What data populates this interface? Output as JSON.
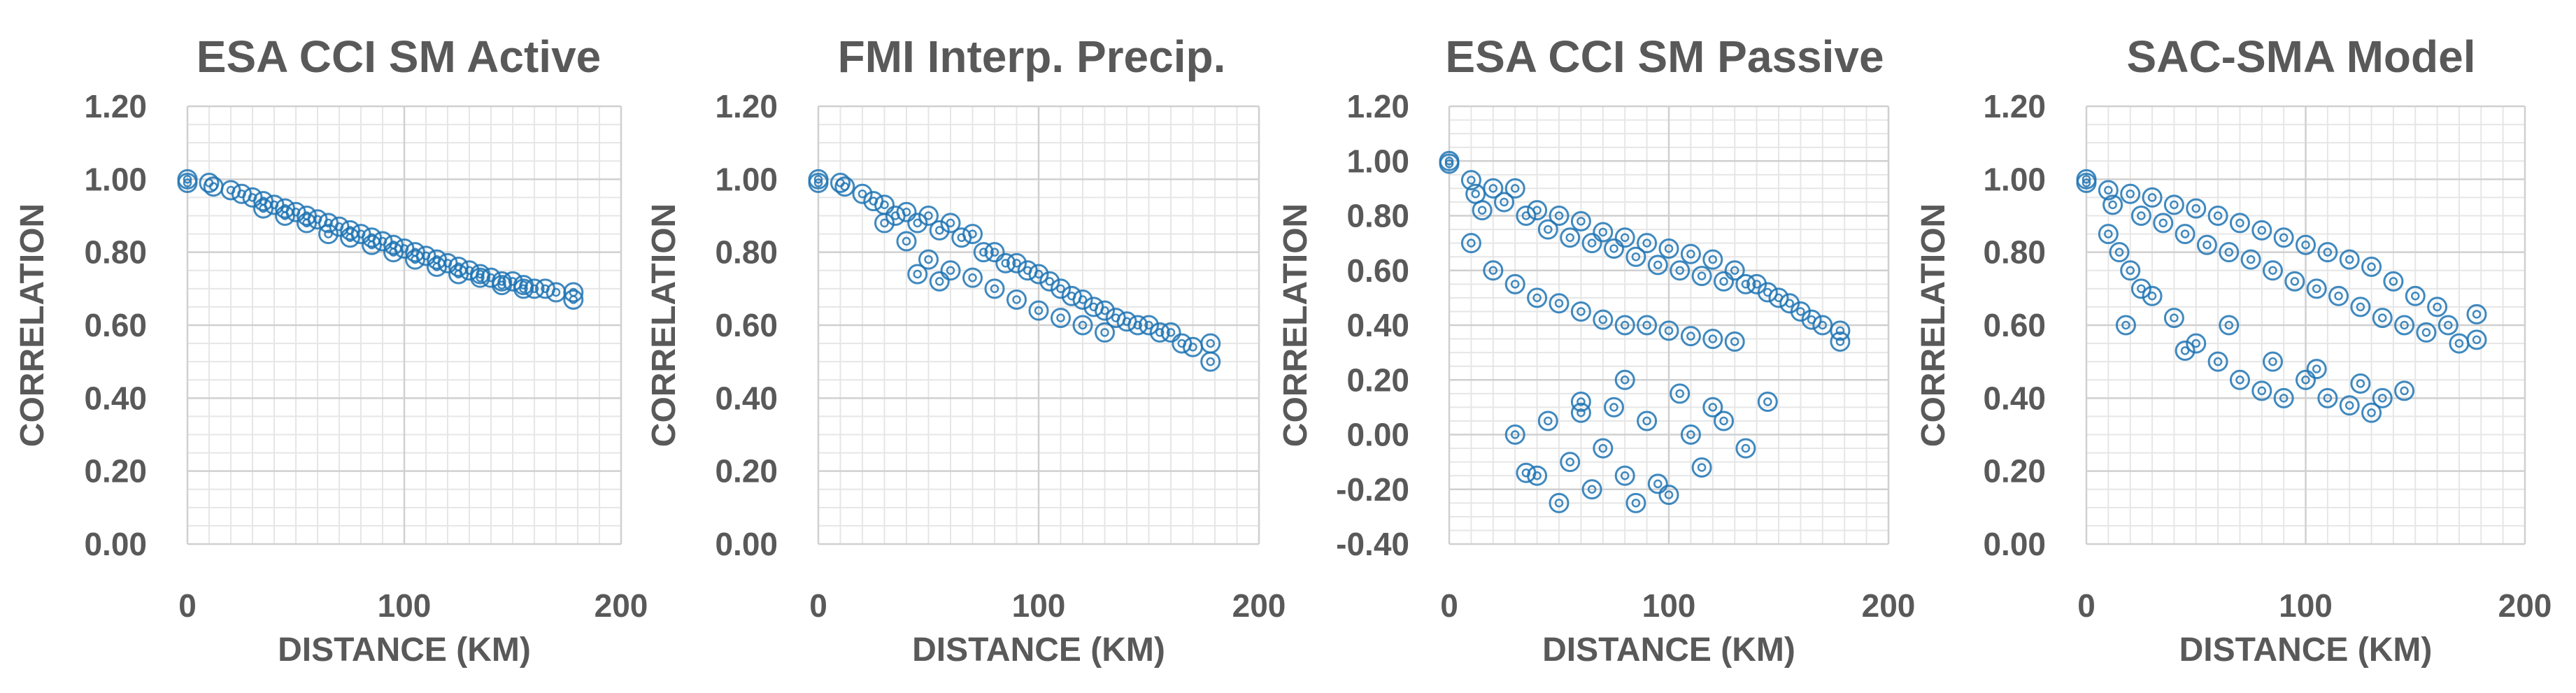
{
  "chart_data": [
    {
      "type": "scatter",
      "title": "ESA CCI SM Active",
      "xlabel": "DISTANCE (KM)",
      "ylabel": "CORRELATION",
      "xlim": [
        0,
        200
      ],
      "ylim": [
        0,
        1.2
      ],
      "xticks": [
        0,
        100,
        200
      ],
      "xtick_labels": [
        "0",
        "100",
        "200"
      ],
      "yticks": [
        0,
        0.2,
        0.4,
        0.6,
        0.8,
        1.0,
        1.2
      ],
      "ytick_labels": [
        "0.00",
        "0.20",
        "0.40",
        "0.60",
        "0.80",
        "1.00",
        "1.20"
      ],
      "grid": true,
      "marker": "open-circle",
      "color": "#1f74b4",
      "series": [
        {
          "name": "ESA CCI SM Active",
          "x": [
            0,
            0,
            10,
            12,
            20,
            25,
            30,
            35,
            40,
            45,
            50,
            55,
            60,
            65,
            70,
            75,
            80,
            85,
            90,
            95,
            100,
            105,
            110,
            115,
            120,
            125,
            130,
            135,
            140,
            145,
            150,
            155,
            160,
            165,
            170,
            178,
            178,
            35,
            45,
            55,
            65,
            75,
            85,
            95,
            105,
            115,
            125,
            135,
            145,
            155
          ],
          "y": [
            1.0,
            0.99,
            0.99,
            0.98,
            0.97,
            0.96,
            0.95,
            0.94,
            0.93,
            0.92,
            0.91,
            0.9,
            0.89,
            0.88,
            0.87,
            0.86,
            0.85,
            0.84,
            0.83,
            0.82,
            0.81,
            0.8,
            0.79,
            0.78,
            0.77,
            0.76,
            0.75,
            0.74,
            0.73,
            0.72,
            0.72,
            0.71,
            0.7,
            0.7,
            0.69,
            0.69,
            0.67,
            0.92,
            0.9,
            0.88,
            0.85,
            0.84,
            0.82,
            0.8,
            0.78,
            0.76,
            0.74,
            0.73,
            0.71,
            0.7
          ]
        }
      ]
    },
    {
      "type": "scatter",
      "title": "FMI Interp. Precip.",
      "xlabel": "DISTANCE (KM)",
      "ylabel": "CORRELATION",
      "xlim": [
        0,
        200
      ],
      "ylim": [
        0,
        1.2
      ],
      "xticks": [
        0,
        100,
        200
      ],
      "xtick_labels": [
        "0",
        "100",
        "200"
      ],
      "yticks": [
        0,
        0.2,
        0.4,
        0.6,
        0.8,
        1.0,
        1.2
      ],
      "ytick_labels": [
        "0.00",
        "0.20",
        "0.40",
        "0.60",
        "0.80",
        "1.00",
        "1.20"
      ],
      "grid": true,
      "marker": "open-circle",
      "color": "#1f74b4",
      "series": [
        {
          "name": "FMI Interp. Precip.",
          "x": [
            0,
            0,
            10,
            12,
            20,
            25,
            30,
            30,
            35,
            40,
            40,
            45,
            50,
            50,
            55,
            60,
            60,
            65,
            70,
            70,
            75,
            80,
            80,
            85,
            90,
            90,
            95,
            100,
            100,
            105,
            110,
            110,
            115,
            120,
            120,
            125,
            130,
            130,
            135,
            140,
            145,
            150,
            155,
            160,
            165,
            170,
            178,
            178,
            45,
            55
          ],
          "y": [
            1.0,
            0.99,
            0.99,
            0.98,
            0.96,
            0.94,
            0.93,
            0.88,
            0.9,
            0.91,
            0.83,
            0.88,
            0.9,
            0.78,
            0.86,
            0.88,
            0.75,
            0.84,
            0.85,
            0.73,
            0.8,
            0.8,
            0.7,
            0.77,
            0.77,
            0.67,
            0.75,
            0.74,
            0.64,
            0.72,
            0.7,
            0.62,
            0.68,
            0.67,
            0.6,
            0.65,
            0.64,
            0.58,
            0.62,
            0.61,
            0.6,
            0.6,
            0.58,
            0.58,
            0.55,
            0.54,
            0.55,
            0.5,
            0.74,
            0.72
          ]
        }
      ]
    },
    {
      "type": "scatter",
      "title": "ESA CCI SM Passive",
      "xlabel": "DISTANCE (KM)",
      "ylabel": "CORRELATION",
      "xlim": [
        0,
        200
      ],
      "ylim": [
        -0.4,
        1.2
      ],
      "xticks": [
        0,
        100,
        200
      ],
      "xtick_labels": [
        "0",
        "100",
        "200"
      ],
      "yticks": [
        -0.4,
        -0.2,
        0,
        0.2,
        0.4,
        0.6,
        0.8,
        1.0,
        1.2
      ],
      "ytick_labels": [
        "-0.40",
        "-0.20",
        "0.00",
        "0.20",
        "0.40",
        "0.60",
        "0.80",
        "1.00",
        "1.20"
      ],
      "grid": true,
      "marker": "open-circle",
      "color": "#1f74b4",
      "series": [
        {
          "name": "ESA CCI SM Passive",
          "x": [
            0,
            0,
            10,
            10,
            12,
            15,
            20,
            20,
            25,
            30,
            30,
            35,
            40,
            40,
            45,
            50,
            50,
            55,
            60,
            60,
            65,
            70,
            70,
            75,
            80,
            80,
            85,
            90,
            90,
            95,
            100,
            100,
            105,
            110,
            110,
            115,
            120,
            120,
            125,
            130,
            130,
            135,
            140,
            145,
            150,
            155,
            160,
            165,
            170,
            178,
            178,
            30,
            35,
            40,
            45,
            50,
            55,
            60,
            65,
            70,
            75,
            80,
            85,
            90,
            95,
            100,
            105,
            110,
            115,
            120,
            125,
            135,
            145,
            60,
            80
          ],
          "y": [
            1.0,
            0.99,
            0.93,
            0.7,
            0.88,
            0.82,
            0.9,
            0.6,
            0.85,
            0.9,
            0.55,
            0.8,
            0.82,
            0.5,
            0.75,
            0.8,
            0.48,
            0.72,
            0.78,
            0.45,
            0.7,
            0.74,
            0.42,
            0.68,
            0.72,
            0.4,
            0.65,
            0.7,
            0.4,
            0.62,
            0.68,
            0.38,
            0.6,
            0.66,
            0.36,
            0.58,
            0.64,
            0.35,
            0.56,
            0.6,
            0.34,
            0.55,
            0.55,
            0.52,
            0.5,
            0.48,
            0.45,
            0.42,
            0.4,
            0.38,
            0.34,
            0.0,
            -0.14,
            -0.15,
            0.05,
            -0.25,
            -0.1,
            0.08,
            -0.2,
            -0.05,
            0.1,
            -0.15,
            -0.25,
            0.05,
            -0.18,
            -0.22,
            0.15,
            0.0,
            -0.12,
            0.1,
            0.05,
            -0.05,
            0.12,
            0.12,
            0.2
          ],
          "cluster_note": "two groups: main band 0.35-1.00, low group -0.26 to 0.20 between 30 and 150 km"
        }
      ]
    },
    {
      "type": "scatter",
      "title": "SAC-SMA Model",
      "xlabel": "DISTANCE (KM)",
      "ylabel": "CORRELATION",
      "xlim": [
        0,
        200
      ],
      "ylim": [
        0,
        1.2
      ],
      "xticks": [
        0,
        100,
        200
      ],
      "xtick_labels": [
        "0",
        "100",
        "200"
      ],
      "yticks": [
        0,
        0.2,
        0.4,
        0.6,
        0.8,
        1.0,
        1.2
      ],
      "ytick_labels": [
        "0.00",
        "0.20",
        "0.40",
        "0.60",
        "0.80",
        "1.00",
        "1.20"
      ],
      "grid": true,
      "marker": "open-circle",
      "color": "#1f74b4",
      "series": [
        {
          "name": "SAC-SMA Model",
          "x": [
            0,
            0,
            10,
            10,
            12,
            15,
            20,
            20,
            25,
            30,
            30,
            35,
            40,
            40,
            45,
            50,
            50,
            55,
            60,
            60,
            65,
            70,
            70,
            75,
            80,
            80,
            85,
            90,
            90,
            95,
            100,
            100,
            105,
            110,
            110,
            115,
            120,
            120,
            125,
            130,
            130,
            135,
            140,
            145,
            150,
            155,
            160,
            165,
            170,
            178,
            178,
            18,
            25,
            45,
            65,
            85,
            105,
            125,
            135,
            145
          ],
          "y": [
            1.0,
            0.99,
            0.97,
            0.85,
            0.93,
            0.8,
            0.96,
            0.75,
            0.9,
            0.95,
            0.68,
            0.88,
            0.93,
            0.62,
            0.85,
            0.92,
            0.55,
            0.82,
            0.9,
            0.5,
            0.8,
            0.88,
            0.45,
            0.78,
            0.86,
            0.42,
            0.75,
            0.84,
            0.4,
            0.72,
            0.82,
            0.45,
            0.7,
            0.8,
            0.4,
            0.68,
            0.78,
            0.38,
            0.65,
            0.76,
            0.36,
            0.62,
            0.72,
            0.6,
            0.68,
            0.58,
            0.65,
            0.6,
            0.55,
            0.63,
            0.56,
            0.6,
            0.7,
            0.53,
            0.6,
            0.5,
            0.48,
            0.44,
            0.4,
            0.42
          ]
        }
      ]
    }
  ]
}
